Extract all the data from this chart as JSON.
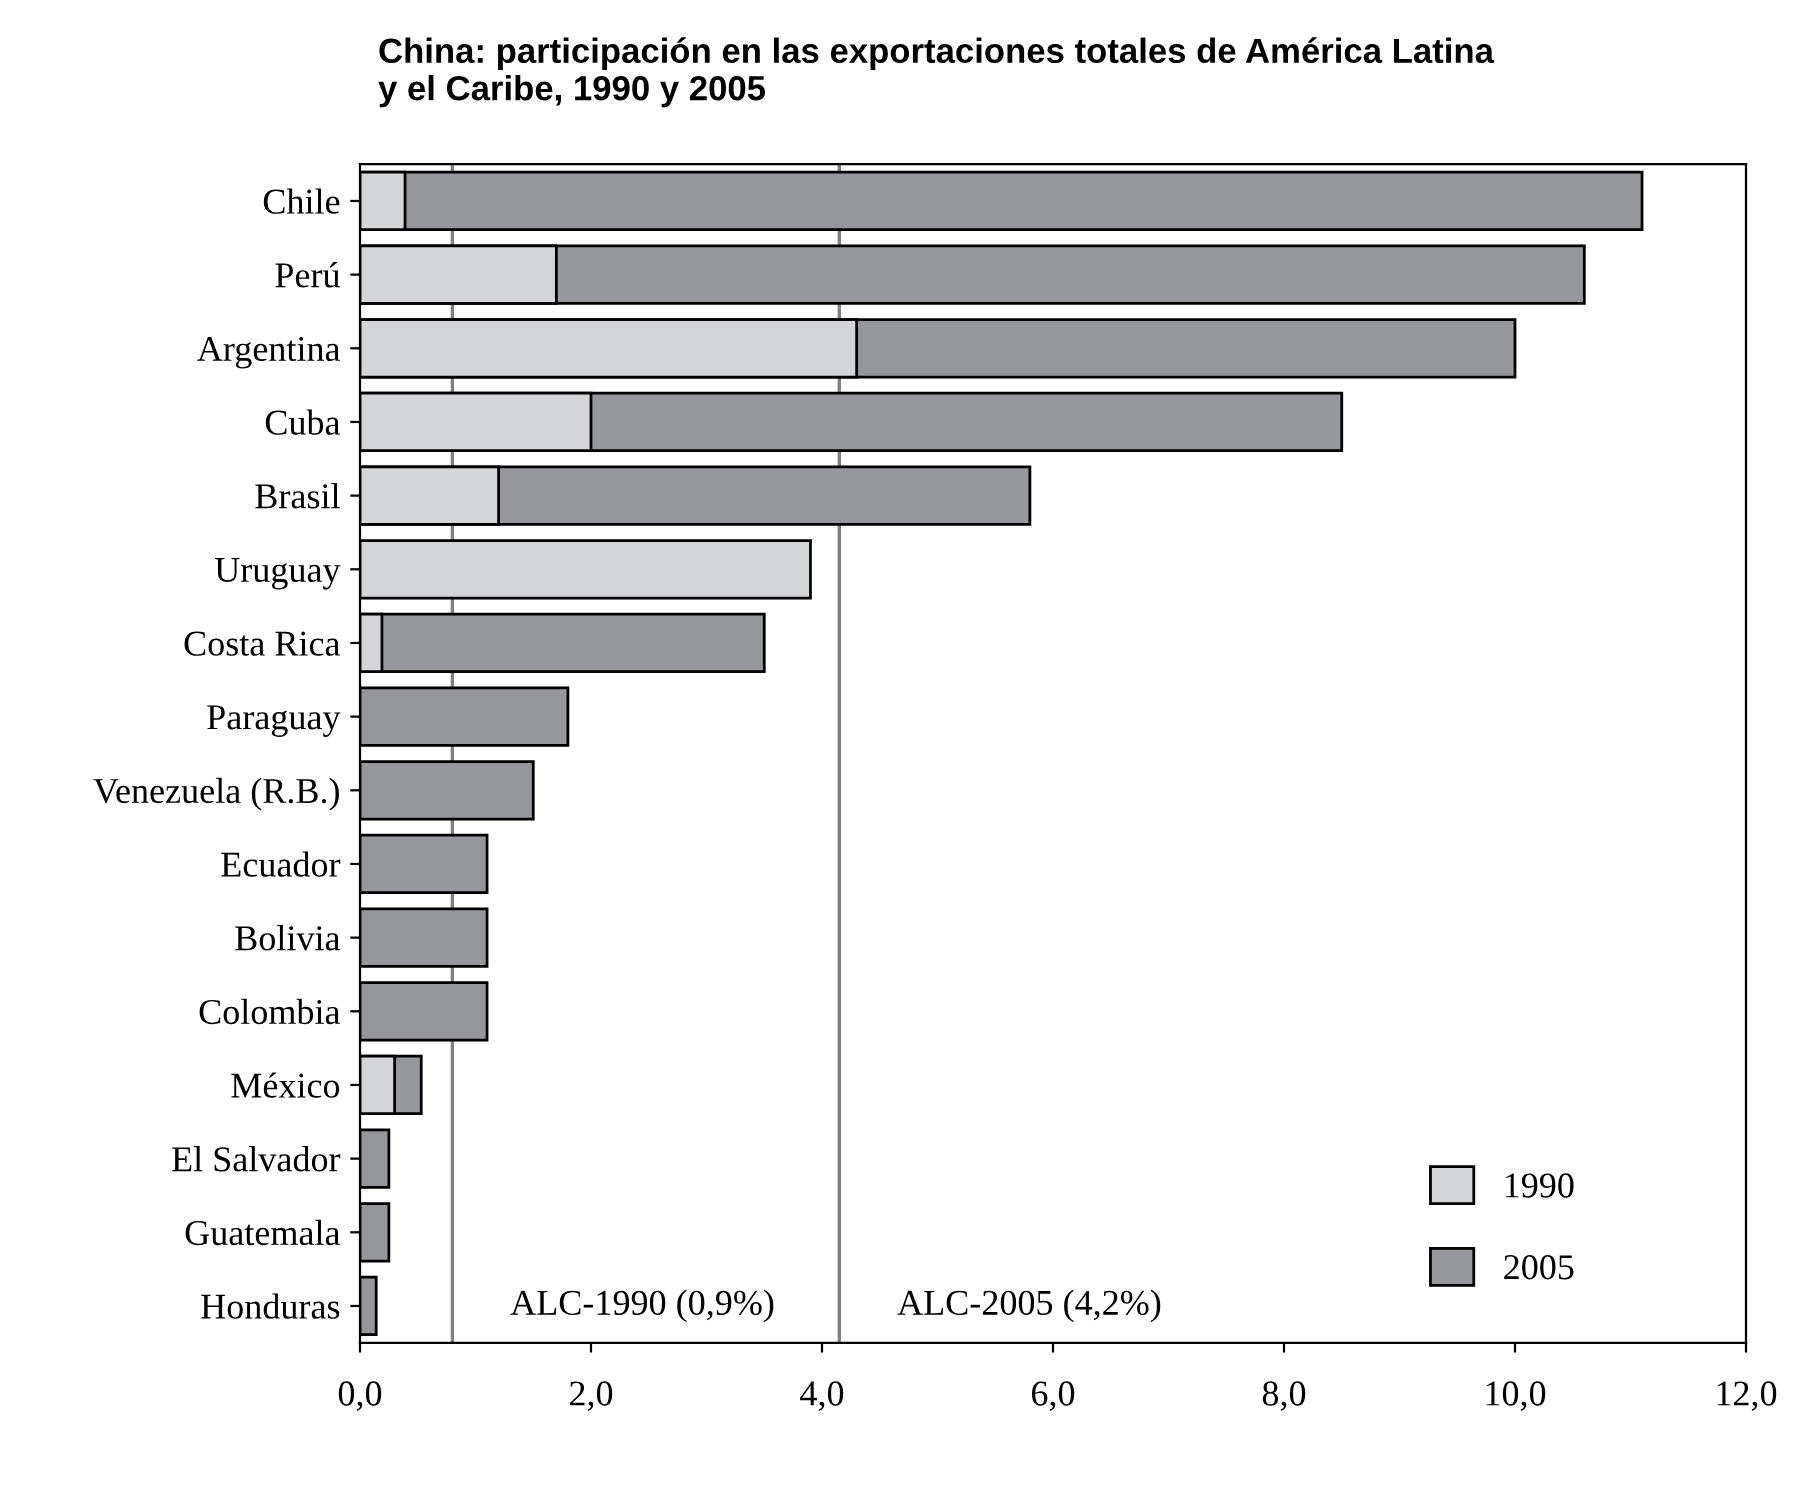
{
  "chart_data": {
    "type": "bar",
    "orientation": "horizontal",
    "title": "China: participación en las exportaciones totales de América Latina\ny el Caribe, 1990 y 2005",
    "categories": [
      "Chile",
      "Perú",
      "Argentina",
      "Cuba",
      "Brasil",
      "Uruguay",
      "Costa Rica",
      "Paraguay",
      "Venezuela (R.B.)",
      "Ecuador",
      "Bolivia",
      "Colombia",
      "México",
      "El Salvador",
      "Guatemala",
      "Honduras"
    ],
    "series": [
      {
        "name": "2005",
        "color": "#96979b",
        "values": [
          11.1,
          10.6,
          10.0,
          8.5,
          5.8,
          null,
          3.5,
          1.8,
          1.5,
          1.1,
          1.1,
          1.1,
          0.53,
          0.25,
          0.25,
          0.14
        ]
      },
      {
        "name": "1990",
        "color": "#d4d5d7",
        "values": [
          0.39,
          1.7,
          4.3,
          2.0,
          1.2,
          3.9,
          0.19,
          null,
          null,
          null,
          null,
          null,
          0.3,
          null,
          null,
          null
        ]
      }
    ],
    "xlim": [
      0,
      12
    ],
    "xticks": [
      {
        "value": 0,
        "label": "0,0"
      },
      {
        "value": 2,
        "label": "2,0"
      },
      {
        "value": 4,
        "label": "4,0"
      },
      {
        "value": 6,
        "label": "6,0"
      },
      {
        "value": 8,
        "label": "8,0"
      },
      {
        "value": 10,
        "label": "10,0"
      },
      {
        "value": 12,
        "label": "12,0"
      }
    ],
    "ref_lines": [
      {
        "axis": "x",
        "value": 0.8,
        "label": "ALC-1990 (0,9%)",
        "color": "#808080"
      },
      {
        "axis": "x",
        "value": 4.15,
        "label": "ALC-2005 (4,2%)",
        "color": "#808080"
      }
    ],
    "grid": false,
    "legend": "bottom right"
  }
}
